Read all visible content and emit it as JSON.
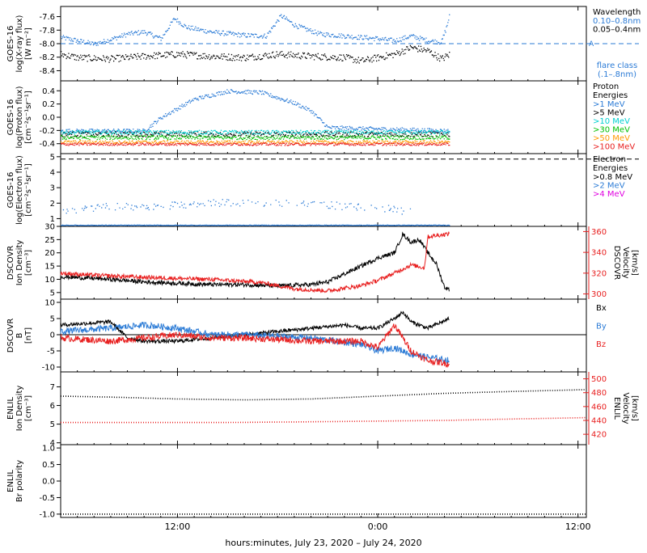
{
  "x_axis": {
    "label": "hours:minutes, July 23, 2020 – July 24, 2020",
    "range_hours": [
      5,
      36.5
    ],
    "ticks": [
      {
        "value": 12,
        "label": "12:00"
      },
      {
        "value": 24,
        "label": "0:00"
      },
      {
        "value": 36,
        "label": "12:00"
      }
    ]
  },
  "chart_data": [
    {
      "id": "xray",
      "type": "scatter",
      "ylabel_lines": [
        "GOES-16",
        "log(X-ray flux)",
        "[W m⁻²]"
      ],
      "ylim": [
        -8.55,
        -7.45
      ],
      "yticks": [
        -7.6,
        -7.8,
        -8.0,
        -8.2,
        -8.4
      ],
      "ytick_labels": [
        "-7.6",
        "-7.8",
        "-8.0",
        "-8.2",
        "-8.4"
      ],
      "reference_line": {
        "y": -8.0,
        "label": "A",
        "color": "#2b7bd6"
      },
      "legend": {
        "title": "Wavelength",
        "entries": [
          {
            "label": "0.10–0.8nm",
            "color": "#2b7bd6"
          },
          {
            "label": "0.05–0.4nm",
            "color": "#000000"
          }
        ],
        "note_lines": [
          "flare class",
          "(.1–.8nm)"
        ],
        "note_color": "#2b7bd6"
      },
      "series": [
        {
          "name": "0.10–0.8nm",
          "color": "#2b7bd6",
          "end_hours": 28.3,
          "noise": 0.035,
          "keypoints": [
            [
              5,
              -7.9
            ],
            [
              6,
              -7.95
            ],
            [
              7,
              -8.0
            ],
            [
              8,
              -7.93
            ],
            [
              9,
              -7.85
            ],
            [
              10,
              -7.82
            ],
            [
              11,
              -7.92
            ],
            [
              11.8,
              -7.62
            ],
            [
              12.5,
              -7.75
            ],
            [
              14,
              -7.82
            ],
            [
              16,
              -7.87
            ],
            [
              17.3,
              -7.88
            ],
            [
              18.2,
              -7.58
            ],
            [
              19,
              -7.72
            ],
            [
              20.5,
              -7.85
            ],
            [
              22,
              -7.88
            ],
            [
              23,
              -7.9
            ],
            [
              24,
              -7.92
            ],
            [
              25,
              -7.95
            ],
            [
              26,
              -7.88
            ],
            [
              27,
              -7.95
            ],
            [
              27.8,
              -7.97
            ],
            [
              28.1,
              -7.75
            ],
            [
              28.3,
              -7.55
            ]
          ]
        },
        {
          "name": "0.05–0.4nm",
          "color": "#000000",
          "end_hours": 28.3,
          "noise": 0.05,
          "keypoints": [
            [
              5,
              -8.15
            ],
            [
              6,
              -8.2
            ],
            [
              8,
              -8.22
            ],
            [
              10,
              -8.18
            ],
            [
              12,
              -8.15
            ],
            [
              14,
              -8.18
            ],
            [
              16,
              -8.2
            ],
            [
              18,
              -8.15
            ],
            [
              20,
              -8.18
            ],
            [
              22,
              -8.2
            ],
            [
              23,
              -8.25
            ],
            [
              24,
              -8.2
            ],
            [
              25,
              -8.15
            ],
            [
              26,
              -8.05
            ],
            [
              27,
              -8.1
            ],
            [
              27.8,
              -8.22
            ],
            [
              28.3,
              -8.15
            ]
          ]
        }
      ]
    },
    {
      "id": "proton",
      "type": "scatter",
      "ylabel_lines": [
        "GOES-16",
        "log(Proton flux)",
        "[cm⁻²s⁻¹sr⁻¹]"
      ],
      "ylim": [
        -0.55,
        0.55
      ],
      "yticks": [
        0.4,
        0.2,
        0.0,
        -0.2,
        -0.4
      ],
      "ytick_labels": [
        "0.4",
        "0.2",
        "0.0",
        "-0.2",
        "-0.4"
      ],
      "legend": {
        "title": "Proton\nEnergies",
        "entries": [
          {
            "label": ">1 MeV",
            "color": "#2b7bd6"
          },
          {
            "label": ">5 MeV",
            "color": "#000000"
          },
          {
            "label": ">10 MeV",
            "color": "#00d0d0"
          },
          {
            "label": ">30 MeV",
            "color": "#00c000"
          },
          {
            "label": ">50 MeV",
            "color": "#ff9900"
          },
          {
            "label": ">100 MeV",
            "color": "#e82020"
          }
        ]
      },
      "series": [
        {
          "name": ">1 MeV",
          "color": "#2b7bd6",
          "end_hours": 28.3,
          "noise": 0.03,
          "keypoints": [
            [
              5,
              -0.2
            ],
            [
              10,
              -0.2
            ],
            [
              11,
              0.0
            ],
            [
              13,
              0.28
            ],
            [
              15,
              0.4
            ],
            [
              17,
              0.38
            ],
            [
              19,
              0.22
            ],
            [
              20,
              0.1
            ],
            [
              21,
              -0.15
            ],
            [
              28.3,
              -0.2
            ]
          ]
        },
        {
          "name": ">5 MeV",
          "color": "#000000",
          "end_hours": 28.3,
          "noise": 0.04,
          "keypoints": [
            [
              5,
              -0.25
            ],
            [
              28.3,
              -0.25
            ]
          ]
        },
        {
          "name": ">10 MeV",
          "color": "#00d0d0",
          "end_hours": 28.3,
          "noise": 0.03,
          "keypoints": [
            [
              5,
              -0.22
            ],
            [
              28.3,
              -0.22
            ]
          ]
        },
        {
          "name": ">30 MeV",
          "color": "#00c000",
          "end_hours": 28.3,
          "noise": 0.03,
          "keypoints": [
            [
              5,
              -0.3
            ],
            [
              28.3,
              -0.3
            ]
          ]
        },
        {
          "name": ">50 MeV",
          "color": "#ff9900",
          "end_hours": 28.3,
          "noise": 0.025,
          "keypoints": [
            [
              5,
              -0.37
            ],
            [
              28.3,
              -0.37
            ]
          ]
        },
        {
          "name": ">100 MeV",
          "color": "#e82020",
          "end_hours": 28.3,
          "noise": 0.02,
          "keypoints": [
            [
              5,
              -0.4
            ],
            [
              28.3,
              -0.4
            ]
          ]
        }
      ]
    },
    {
      "id": "electron",
      "type": "scatter",
      "ylabel_lines": [
        "GOES-16",
        "log(Electron flux)",
        "[cm⁻²s⁻¹sr⁻¹]"
      ],
      "ylim": [
        0.5,
        5.2
      ],
      "yticks": [
        5,
        4,
        3,
        2,
        1
      ],
      "ytick_labels": [
        "5",
        "4",
        "3",
        "2",
        "1"
      ],
      "reference_line": {
        "y": 4.85,
        "label": "",
        "color": "#000000"
      },
      "legend": {
        "title": "Electron\nEnergies",
        "entries": [
          {
            "label": ">0.8 MeV",
            "color": "#000000"
          },
          {
            "label": ">2 MeV",
            "color": "#2b7bd6"
          },
          {
            "label": ">4 MeV",
            "color": "#e000e0"
          }
        ]
      },
      "series": [
        {
          "name": ">2 MeV",
          "color": "#2b7bd6",
          "end_hours": 26,
          "noise": 0.25,
          "keypoints": [
            [
              5,
              1.5
            ],
            [
              8,
              1.8
            ],
            [
              12,
              1.9
            ],
            [
              16,
              2.1
            ],
            [
              20,
              2.0
            ],
            [
              24,
              1.7
            ],
            [
              26,
              1.5
            ]
          ]
        },
        {
          "name": ">2 MeV baseline",
          "color": "#2b7bd6",
          "end_hours": 28.3,
          "noise": 0.02,
          "keypoints": [
            [
              5,
              0.6
            ],
            [
              28.3,
              0.6
            ]
          ]
        }
      ]
    },
    {
      "id": "dscovr_density",
      "type": "line",
      "ylabel_lines": [
        "DSCOVR",
        "Ion Density",
        "[cm⁻³]"
      ],
      "ylim": [
        2.5,
        30
      ],
      "yticks": [
        30,
        25,
        20,
        15,
        10,
        5
      ],
      "ytick_labels": [
        "30",
        "25",
        "20",
        "15",
        "10",
        "5"
      ],
      "y2label_lines": [
        "DSCOVR",
        "Velocity",
        "[km/s]"
      ],
      "y2lim": [
        295,
        365
      ],
      "y2ticks": [
        360,
        340,
        320,
        300
      ],
      "y2tick_labels": [
        "360",
        "340",
        "320",
        "300"
      ],
      "y2_color": "#e82020",
      "series": [
        {
          "name": "Ion Density",
          "color": "#000000",
          "axis": "left",
          "end_hours": 28.3,
          "noise": 0.8,
          "keypoints": [
            [
              5,
              11
            ],
            [
              8,
              10
            ],
            [
              10,
              9
            ],
            [
              12,
              8.5
            ],
            [
              14,
              8
            ],
            [
              16,
              8
            ],
            [
              18,
              7.5
            ],
            [
              20,
              8
            ],
            [
              21,
              9
            ],
            [
              22,
              12
            ],
            [
              23,
              15
            ],
            [
              24,
              18
            ],
            [
              25,
              20
            ],
            [
              25.5,
              27
            ],
            [
              26,
              24
            ],
            [
              26.5,
              25
            ],
            [
              27,
              20
            ],
            [
              27.5,
              16
            ],
            [
              28,
              7
            ],
            [
              28.3,
              6
            ]
          ]
        },
        {
          "name": "Velocity",
          "color": "#e82020",
          "axis": "right",
          "end_hours": 28.3,
          "noise": 2.0,
          "keypoints": [
            [
              5,
              320
            ],
            [
              7,
              318
            ],
            [
              10,
              316
            ],
            [
              14,
              314
            ],
            [
              17,
              311
            ],
            [
              19,
              305
            ],
            [
              21,
              303
            ],
            [
              23,
              308
            ],
            [
              24,
              313
            ],
            [
              25,
              320
            ],
            [
              26,
              328
            ],
            [
              26.8,
              325
            ],
            [
              27,
              355
            ],
            [
              28.3,
              358
            ]
          ]
        }
      ]
    },
    {
      "id": "dscovr_b",
      "type": "line",
      "ylabel_lines": [
        "DSCOVR",
        "B",
        "[nT]"
      ],
      "ylim": [
        -11.5,
        11
      ],
      "yticks": [
        10,
        5,
        0,
        -5,
        -10
      ],
      "ytick_labels": [
        "10",
        "5",
        "0",
        "-5",
        "-10"
      ],
      "zero_line": true,
      "legend": {
        "entries": [
          {
            "label": "Bx",
            "color": "#000000"
          },
          {
            "label": "By",
            "color": "#2b7bd6"
          },
          {
            "label": "Bz",
            "color": "#e82020"
          }
        ]
      },
      "series": [
        {
          "name": "Bx",
          "color": "#000000",
          "end_hours": 28.3,
          "noise": 0.6,
          "keypoints": [
            [
              5,
              3
            ],
            [
              8,
              4
            ],
            [
              9,
              -1
            ],
            [
              10,
              -2
            ],
            [
              12,
              -2
            ],
            [
              14,
              -1
            ],
            [
              16,
              0
            ],
            [
              18,
              1
            ],
            [
              20,
              2
            ],
            [
              22,
              3
            ],
            [
              23,
              2
            ],
            [
              24,
              2
            ],
            [
              25,
              5
            ],
            [
              25.5,
              7
            ],
            [
              26,
              4
            ],
            [
              27,
              2
            ],
            [
              28.3,
              5
            ]
          ]
        },
        {
          "name": "By",
          "color": "#2b7bd6",
          "end_hours": 28.3,
          "noise": 1.0,
          "keypoints": [
            [
              5,
              1
            ],
            [
              8,
              2
            ],
            [
              10,
              3
            ],
            [
              12,
              2
            ],
            [
              14,
              0
            ],
            [
              16,
              0
            ],
            [
              20,
              -1
            ],
            [
              23,
              -3
            ],
            [
              24,
              -5
            ],
            [
              25,
              -4
            ],
            [
              26,
              -6
            ],
            [
              27,
              -7
            ],
            [
              28.3,
              -8
            ]
          ]
        },
        {
          "name": "Bz",
          "color": "#e82020",
          "end_hours": 28.3,
          "noise": 1.0,
          "keypoints": [
            [
              5,
              -1
            ],
            [
              8,
              -2
            ],
            [
              10,
              -1
            ],
            [
              12,
              0
            ],
            [
              14,
              -1
            ],
            [
              16,
              -1
            ],
            [
              20,
              -2
            ],
            [
              23,
              -2
            ],
            [
              24,
              -4
            ],
            [
              25,
              3
            ],
            [
              26,
              -5
            ],
            [
              27,
              -8
            ],
            [
              28.3,
              -9
            ]
          ]
        }
      ]
    },
    {
      "id": "enlil_density",
      "type": "line",
      "ylabel_lines": [
        "ENLIL",
        "Ion Density",
        "[cm⁻³]"
      ],
      "ylim": [
        3.9,
        7.8
      ],
      "yticks": [
        7,
        6,
        5,
        4
      ],
      "ytick_labels": [
        "7",
        "6",
        "5",
        "4"
      ],
      "y2label_lines": [
        "ENLIL",
        "Velocity",
        "[km/s]"
      ],
      "y2lim": [
        405,
        510
      ],
      "y2ticks": [
        500,
        480,
        460,
        440,
        420
      ],
      "y2tick_labels": [
        "500",
        "480",
        "460",
        "440",
        "420"
      ],
      "y2_color": "#e82020",
      "series": [
        {
          "name": "Ion Density",
          "color": "#000000",
          "axis": "left",
          "end_hours": 36.5,
          "noise": 0,
          "keypoints": [
            [
              5,
              6.5
            ],
            [
              8,
              6.45
            ],
            [
              12,
              6.35
            ],
            [
              16,
              6.3
            ],
            [
              20,
              6.35
            ],
            [
              24,
              6.5
            ],
            [
              28,
              6.65
            ],
            [
              32,
              6.75
            ],
            [
              36.5,
              6.85
            ]
          ]
        },
        {
          "name": "Velocity",
          "color": "#e82020",
          "axis": "right",
          "end_hours": 36.5,
          "noise": 0,
          "keypoints": [
            [
              5,
              437
            ],
            [
              10,
              437
            ],
            [
              15,
              437
            ],
            [
              20,
              438
            ],
            [
              24,
              439
            ],
            [
              28,
              440
            ],
            [
              32,
              442
            ],
            [
              36.5,
              444
            ]
          ]
        }
      ]
    },
    {
      "id": "enlil_polarity",
      "type": "line",
      "ylabel_lines": [
        "ENLIL",
        "Br polarity"
      ],
      "ylim": [
        -1.1,
        1.1
      ],
      "yticks": [
        1.0,
        0.5,
        0.0,
        -0.5,
        -1.0
      ],
      "ytick_labels": [
        "1.0",
        "0.5",
        "0.0",
        "-0.5",
        "-1.0"
      ],
      "series": [
        {
          "name": "Br polarity",
          "color": "#000000",
          "end_hours": 36.5,
          "noise": 0,
          "keypoints": [
            [
              5,
              -1.0
            ],
            [
              36.5,
              -1.0
            ]
          ]
        }
      ]
    }
  ]
}
